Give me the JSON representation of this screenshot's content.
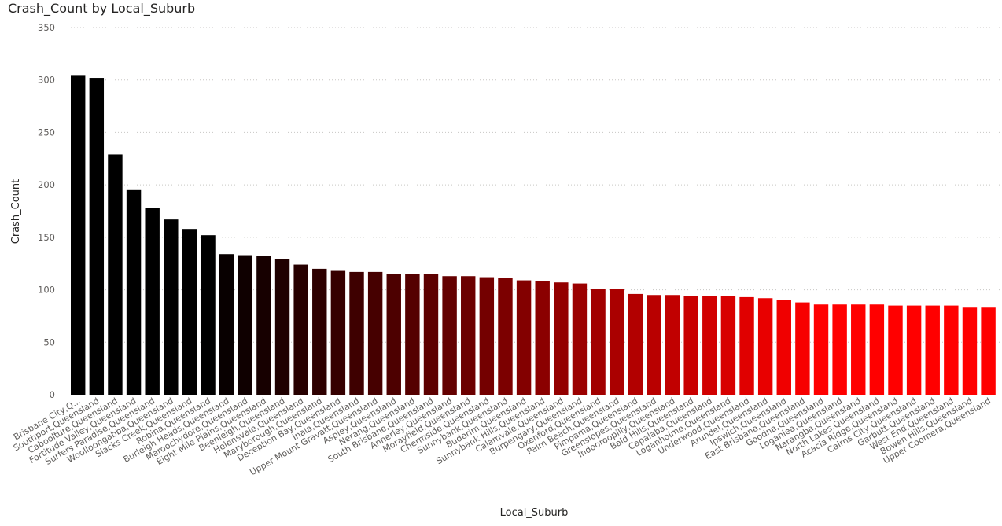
{
  "chart_data": {
    "type": "bar",
    "title": "Crash_Count by Local_Suburb",
    "xlabel": "Local_Suburb",
    "ylabel": "Crash_Count",
    "ylim": [
      0,
      350
    ],
    "yticks": [
      0,
      50,
      100,
      150,
      200,
      250,
      300,
      350
    ],
    "grid": true,
    "color_gradient": [
      "#000000",
      "#ff0000"
    ],
    "categories": [
      "Brisbane City,Q...",
      "Southport,Queensland",
      "Caboolture,Queensland",
      "Fortitude Valley,Queensland",
      "Surfers Paradise,Queensland",
      "Woolloongabba,Queensland",
      "Slacks Creek,Queensland",
      "Robina,Queensland",
      "Burleigh Heads,Queensland",
      "Maroochydore,Queensland",
      "Eight Mile Plains,Queensland",
      "Beenleigh,Queensland",
      "Helensvale,Queensland",
      "Maryborough,Queensland",
      "Deception Bay,Queensland",
      "Inala,Queensland",
      "Upper Mount Gravatt,Queensland",
      "Aspley,Queensland",
      "Nerang,Queensland",
      "South Brisbane,Queensland",
      "Annerley,Queensland",
      "Morayfield,Queensland",
      "Chermside,Queensland",
      "Sunnybank,Queensland",
      "Buderim,Queensland",
      "Sunnybank Hills,Queensland",
      "Calamvale,Queensland",
      "Burpengary,Queensland",
      "Oxenford,Queensland",
      "Palm Beach,Queensland",
      "Pimpama,Queensland",
      "Greenslopes,Queensland",
      "Indooroopilly,Queensland",
      "Bald Hills,Queensland",
      "Capalaba,Queensland",
      "Loganholme,Queensland",
      "Underwood,Queensland",
      "Arundel,Queensland",
      "Ipswich,Queensland",
      "East Brisbane,Queensland",
      "Goodna,Queensland",
      "Loganlea,Queensland",
      "Narangba,Queensland",
      "North Lakes,Queensland",
      "Acacia Ridge,Queensland",
      "Cairns City,Queensland",
      "Garbutt,Queensland",
      "West End,Queensland",
      "Bowen Hills,Queensland",
      "Upper Coomera,Queensland"
    ],
    "values": [
      304,
      302,
      229,
      195,
      178,
      167,
      158,
      152,
      134,
      133,
      132,
      129,
      124,
      120,
      118,
      117,
      117,
      115,
      115,
      115,
      113,
      113,
      112,
      111,
      109,
      108,
      107,
      106,
      101,
      101,
      96,
      95,
      95,
      94,
      94,
      94,
      93,
      92,
      90,
      88,
      86,
      86,
      86,
      86,
      85,
      85,
      85,
      85,
      83,
      83
    ]
  }
}
